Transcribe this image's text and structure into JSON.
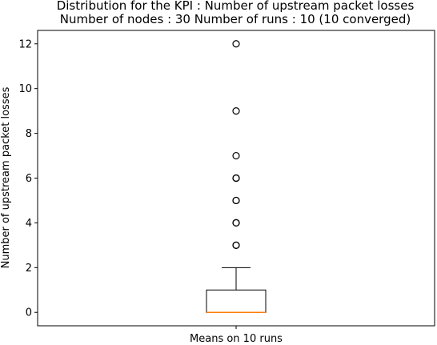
{
  "chart_data": {
    "type": "box",
    "title_line1": "Distribution for the KPI : Number of upstream packet losses",
    "title_line2": "Number of nodes : 30   Number of runs : 10 (10 converged)",
    "xlabel": "",
    "ylabel": "Number of upstream packet losses",
    "categories": [
      "Means on 10 runs"
    ],
    "ylim": [
      -0.6,
      12.6
    ],
    "yticks": [
      0,
      2,
      4,
      6,
      8,
      10,
      12
    ],
    "box": {
      "whisker_low": 0,
      "q1": 0,
      "median": 0,
      "q3": 1,
      "whisker_high": 2
    },
    "outliers": [
      3,
      3,
      4,
      4,
      5,
      5,
      6,
      6,
      7,
      9,
      12
    ],
    "grid": false,
    "colors": {
      "box": "#000000",
      "median": "#ff7f0e",
      "outlier": "#000000"
    }
  }
}
